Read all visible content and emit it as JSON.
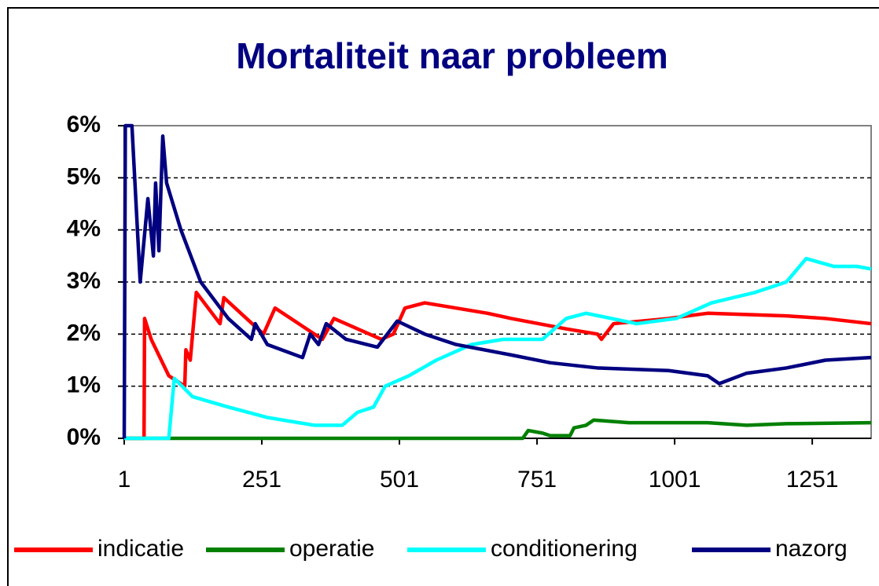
{
  "chart_data": {
    "type": "line",
    "title": "Mortaliteit naar probleem",
    "xlim": [
      1,
      1358
    ],
    "xticks": [
      1,
      251,
      501,
      751,
      1001,
      1251
    ],
    "ylim": [
      0,
      6
    ],
    "yticks": [
      {
        "value": 0,
        "label": "0%"
      },
      {
        "value": 1,
        "label": "1%"
      },
      {
        "value": 2,
        "label": "2%"
      },
      {
        "value": 3,
        "label": "3%"
      },
      {
        "value": 4,
        "label": "4%"
      },
      {
        "value": 5,
        "label": "5%"
      },
      {
        "value": 6,
        "label": "6%"
      }
    ],
    "grid": true,
    "legend": "bottom",
    "series": [
      {
        "name": "indicatie",
        "color": "#ff0000",
        "x": [
          1,
          37,
          38,
          50,
          82,
          111,
          113,
          121,
          132,
          175,
          182,
          254,
          275,
          361,
          382,
          468,
          490,
          511,
          547,
          661,
          704,
          804,
          861,
          868,
          890,
          990,
          1061,
          1204,
          1275,
          1358
        ],
        "values": [
          0,
          0,
          2.3,
          1.9,
          1.2,
          1.0,
          1.7,
          1.5,
          2.8,
          2.2,
          2.7,
          2.0,
          2.5,
          1.9,
          2.3,
          1.9,
          2.0,
          2.5,
          2.6,
          2.4,
          2.3,
          2.1,
          2.0,
          1.9,
          2.2,
          2.3,
          2.4,
          2.35,
          2.3,
          2.2
        ]
      },
      {
        "name": "operatie",
        "color": "#008000",
        "x": [
          1,
          725,
          735,
          761,
          775,
          811,
          818,
          840,
          854,
          918,
          1061,
          1132,
          1204,
          1358
        ],
        "values": [
          0,
          0,
          0.15,
          0.1,
          0.05,
          0.05,
          0.2,
          0.25,
          0.35,
          0.3,
          0.3,
          0.25,
          0.28,
          0.3
        ]
      },
      {
        "name": "conditionering",
        "color": "#00ffff",
        "x": [
          1,
          82,
          92,
          125,
          190,
          261,
          318,
          347,
          397,
          425,
          454,
          475,
          518,
          568,
          632,
          690,
          761,
          804,
          840,
          932,
          1004,
          1068,
          1147,
          1204,
          1240,
          1290,
          1332,
          1358
        ],
        "values": [
          0,
          0,
          1.15,
          0.8,
          0.6,
          0.4,
          0.3,
          0.25,
          0.25,
          0.5,
          0.6,
          1.0,
          1.2,
          1.5,
          1.8,
          1.9,
          1.9,
          2.3,
          2.4,
          2.2,
          2.3,
          2.6,
          2.8,
          3.0,
          3.45,
          3.3,
          3.3,
          3.25
        ]
      },
      {
        "name": "nazorg",
        "color": "#000080",
        "x": [
          1,
          3,
          15,
          30,
          44,
          54,
          58,
          64,
          71,
          78,
          104,
          140,
          190,
          232,
          239,
          261,
          325,
          339,
          354,
          368,
          404,
          461,
          497,
          547,
          604,
          704,
          775,
          861,
          990,
          1061,
          1075,
          1082,
          1132,
          1204,
          1275,
          1358
        ],
        "values": [
          0,
          6,
          6,
          3.0,
          4.6,
          3.5,
          4.9,
          3.6,
          5.8,
          4.9,
          4.0,
          3.0,
          2.3,
          1.9,
          2.2,
          1.8,
          1.55,
          2.0,
          1.8,
          2.2,
          1.9,
          1.75,
          2.25,
          2.0,
          1.8,
          1.6,
          1.45,
          1.35,
          1.3,
          1.2,
          1.1,
          1.05,
          1.25,
          1.35,
          1.5,
          1.55
        ]
      }
    ]
  }
}
